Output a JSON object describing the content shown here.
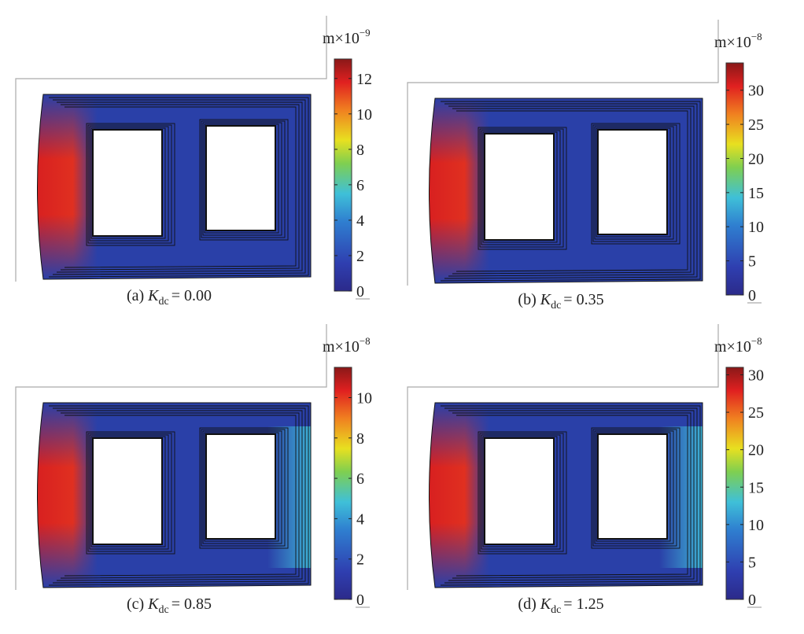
{
  "panels": [
    {
      "caption": {
        "prefix": "(a) ",
        "symbol": "K",
        "subscript": "dc",
        "suffix": "= 0.00"
      },
      "colorbar": {
        "unit_base": "m×10",
        "unit_exponent": "−9",
        "range": [
          0,
          13.1
        ],
        "ticks": [
          0,
          2,
          4,
          6,
          8,
          10,
          12
        ]
      }
    },
    {
      "caption": {
        "prefix": "(b) ",
        "symbol": "K",
        "subscript": "dc",
        "suffix": "= 0.35"
      },
      "colorbar": {
        "unit_base": "m×10",
        "unit_exponent": "−8",
        "range": [
          0,
          34
        ],
        "ticks": [
          0,
          5,
          10,
          15,
          20,
          25,
          30
        ]
      }
    },
    {
      "caption": {
        "prefix": "(c) ",
        "symbol": "K",
        "subscript": "dc",
        "suffix": "= 0.85"
      },
      "colorbar": {
        "unit_base": "m×10",
        "unit_exponent": "−8",
        "range": [
          0,
          11.5
        ],
        "ticks": [
          0,
          2,
          4,
          6,
          8,
          10
        ]
      }
    },
    {
      "caption": {
        "prefix": "(d) ",
        "symbol": "K",
        "subscript": "dc",
        "suffix": "= 1.25"
      },
      "colorbar": {
        "unit_base": "m×10",
        "unit_exponent": "−8",
        "range": [
          0,
          31
        ],
        "ticks": [
          0,
          5,
          10,
          15,
          20,
          25,
          30
        ]
      }
    }
  ]
}
